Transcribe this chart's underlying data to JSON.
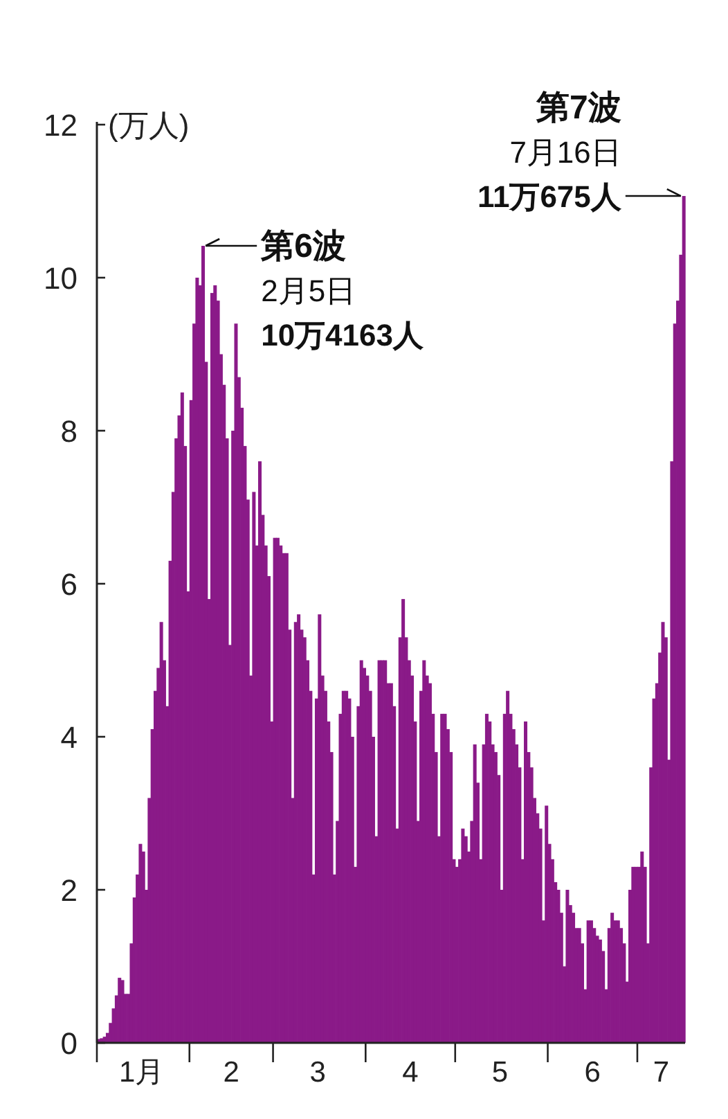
{
  "chart_data": {
    "type": "bar",
    "ylabel": "(万人)",
    "x": [
      "--01-01",
      "--01-02",
      "--01-03",
      "--01-04",
      "--01-05",
      "--01-06",
      "--01-07",
      "--01-08",
      "--01-09",
      "--01-10",
      "--01-11",
      "--01-12",
      "--01-13",
      "--01-14",
      "--01-15",
      "--01-16",
      "--01-17",
      "--01-18",
      "--01-19",
      "--01-20",
      "--01-21",
      "--01-22",
      "--01-23",
      "--01-24",
      "--01-25",
      "--01-26",
      "--01-27",
      "--01-28",
      "--01-29",
      "--01-30",
      "--01-31",
      "--02-01",
      "--02-02",
      "--02-03",
      "--02-04",
      "--02-05",
      "--02-06",
      "--02-07",
      "--02-08",
      "--02-09",
      "--02-10",
      "--02-11",
      "--02-12",
      "--02-13",
      "--02-14",
      "--02-15",
      "--02-16",
      "--02-17",
      "--02-18",
      "--02-19",
      "--02-20",
      "--02-21",
      "--02-22",
      "--02-23",
      "--02-24",
      "--02-25",
      "--02-26",
      "--02-27",
      "--02-28",
      "--03-01",
      "--03-02",
      "--03-03",
      "--03-04",
      "--03-05",
      "--03-06",
      "--03-07",
      "--03-08",
      "--03-09",
      "--03-10",
      "--03-11",
      "--03-12",
      "--03-13",
      "--03-14",
      "--03-15",
      "--03-16",
      "--03-17",
      "--03-18",
      "--03-19",
      "--03-20",
      "--03-21",
      "--03-22",
      "--03-23",
      "--03-24",
      "--03-25",
      "--03-26",
      "--03-27",
      "--03-28",
      "--03-29",
      "--03-30",
      "--03-31",
      "--04-01",
      "--04-02",
      "--04-03",
      "--04-04",
      "--04-05",
      "--04-06",
      "--04-07",
      "--04-08",
      "--04-09",
      "--04-10",
      "--04-11",
      "--04-12",
      "--04-13",
      "--04-14",
      "--04-15",
      "--04-16",
      "--04-17",
      "--04-18",
      "--04-19",
      "--04-20",
      "--04-21",
      "--04-22",
      "--04-23",
      "--04-24",
      "--04-25",
      "--04-26",
      "--04-27",
      "--04-28",
      "--04-29",
      "--04-30",
      "--05-01",
      "--05-02",
      "--05-03",
      "--05-04",
      "--05-05",
      "--05-06",
      "--05-07",
      "--05-08",
      "--05-09",
      "--05-10",
      "--05-11",
      "--05-12",
      "--05-13",
      "--05-14",
      "--05-15",
      "--05-16",
      "--05-17",
      "--05-18",
      "--05-19",
      "--05-20",
      "--05-21",
      "--05-22",
      "--05-23",
      "--05-24",
      "--05-25",
      "--05-26",
      "--05-27",
      "--05-28",
      "--05-29",
      "--05-30",
      "--05-31",
      "--06-01",
      "--06-02",
      "--06-03",
      "--06-04",
      "--06-05",
      "--06-06",
      "--06-07",
      "--06-08",
      "--06-09",
      "--06-10",
      "--06-11",
      "--06-12",
      "--06-13",
      "--06-14",
      "--06-15",
      "--06-16",
      "--06-17",
      "--06-18",
      "--06-19",
      "--06-20",
      "--06-21",
      "--06-22",
      "--06-23",
      "--06-24",
      "--06-25",
      "--06-26",
      "--06-27",
      "--06-28",
      "--06-29",
      "--06-30",
      "--07-01",
      "--07-02",
      "--07-03",
      "--07-04",
      "--07-05",
      "--07-06",
      "--07-07",
      "--07-08",
      "--07-09",
      "--07-10",
      "--07-11",
      "--07-12",
      "--07-13",
      "--07-14",
      "--07-15",
      "--07-16"
    ],
    "series": [
      {
        "color": "#8a1a88",
        "values": [
          0.05,
          0.06,
          0.08,
          0.13,
          0.26,
          0.45,
          0.62,
          0.85,
          0.82,
          0.64,
          0.64,
          1.3,
          1.9,
          2.2,
          2.6,
          2.5,
          2.0,
          3.2,
          4.1,
          4.6,
          4.9,
          5.5,
          5.0,
          4.4,
          6.3,
          7.2,
          7.9,
          8.2,
          8.5,
          7.8,
          5.9,
          8.4,
          9.4,
          10.0,
          9.9,
          10.4163,
          8.9,
          5.8,
          9.8,
          9.9,
          9.7,
          9.0,
          8.6,
          7.9,
          5.2,
          8.0,
          9.4,
          8.7,
          8.3,
          7.8,
          7.1,
          4.8,
          7.2,
          6.5,
          7.6,
          6.9,
          6.5,
          6.1,
          4.2,
          6.6,
          6.6,
          6.5,
          6.4,
          6.4,
          5.4,
          3.2,
          5.5,
          5.6,
          5.4,
          5.3,
          5.0,
          4.6,
          2.2,
          4.5,
          5.6,
          4.8,
          4.6,
          4.2,
          3.8,
          2.2,
          2.9,
          4.3,
          4.6,
          4.6,
          4.5,
          4.0,
          2.3,
          4.4,
          5.0,
          4.9,
          4.8,
          4.6,
          4.0,
          2.7,
          5.0,
          5.0,
          5.0,
          4.7,
          4.7,
          4.4,
          2.8,
          5.3,
          5.8,
          5.3,
          5.0,
          4.8,
          4.2,
          2.9,
          4.6,
          5.0,
          4.8,
          4.7,
          4.3,
          3.8,
          2.7,
          4.3,
          4.3,
          4.1,
          3.8,
          2.4,
          2.3,
          2.4,
          2.8,
          2.7,
          2.5,
          2.9,
          3.9,
          3.4,
          2.4,
          3.9,
          4.3,
          4.2,
          3.9,
          3.8,
          3.5,
          2.0,
          4.3,
          4.6,
          4.3,
          4.1,
          3.9,
          3.6,
          2.4,
          4.2,
          3.8,
          3.6,
          3.2,
          3.0,
          2.8,
          1.6,
          3.1,
          2.6,
          2.4,
          2.1,
          2.0,
          1.7,
          1.0,
          2.0,
          1.8,
          1.7,
          1.5,
          1.5,
          1.3,
          0.7,
          1.6,
          1.6,
          1.5,
          1.4,
          1.35,
          1.2,
          0.7,
          1.5,
          1.7,
          1.6,
          1.6,
          1.5,
          1.3,
          0.8,
          2.0,
          2.3,
          2.3,
          2.3,
          2.5,
          2.3,
          1.3,
          3.6,
          4.5,
          4.7,
          5.1,
          5.5,
          5.3,
          3.7,
          7.6,
          9.4,
          9.7,
          10.3,
          11.0675
        ]
      }
    ],
    "xlim": [
      "--01-01",
      "--07-17"
    ],
    "xticks": [
      {
        "value": "--01-01",
        "label": null
      },
      {
        "value": "--01-16",
        "label": "1月"
      },
      {
        "value": "--02-01",
        "label": null
      },
      {
        "value": "--02-15",
        "label": "2"
      },
      {
        "value": "--03-01",
        "label": null
      },
      {
        "value": "--03-16",
        "label": "3"
      },
      {
        "value": "--04-01",
        "label": null
      },
      {
        "value": "--04-16",
        "label": "4"
      },
      {
        "value": "--05-01",
        "label": null
      },
      {
        "value": "--05-16",
        "label": "5"
      },
      {
        "value": "--06-01",
        "label": null
      },
      {
        "value": "--06-16",
        "label": "6"
      },
      {
        "value": "--07-01",
        "label": null
      },
      {
        "value": "--07-09",
        "label": "7"
      }
    ],
    "ylim": [
      0,
      12
    ],
    "yticks": [
      0,
      2,
      4,
      6,
      8,
      10,
      12
    ],
    "annotations": [
      {
        "text": "第6波\n2月5日\n10万4163人",
        "x": "--02-05",
        "y": 10.4163
      },
      {
        "text": "第7波\n7月16日\n11万675人",
        "x": "--07-16",
        "y": 11.0675
      }
    ]
  }
}
